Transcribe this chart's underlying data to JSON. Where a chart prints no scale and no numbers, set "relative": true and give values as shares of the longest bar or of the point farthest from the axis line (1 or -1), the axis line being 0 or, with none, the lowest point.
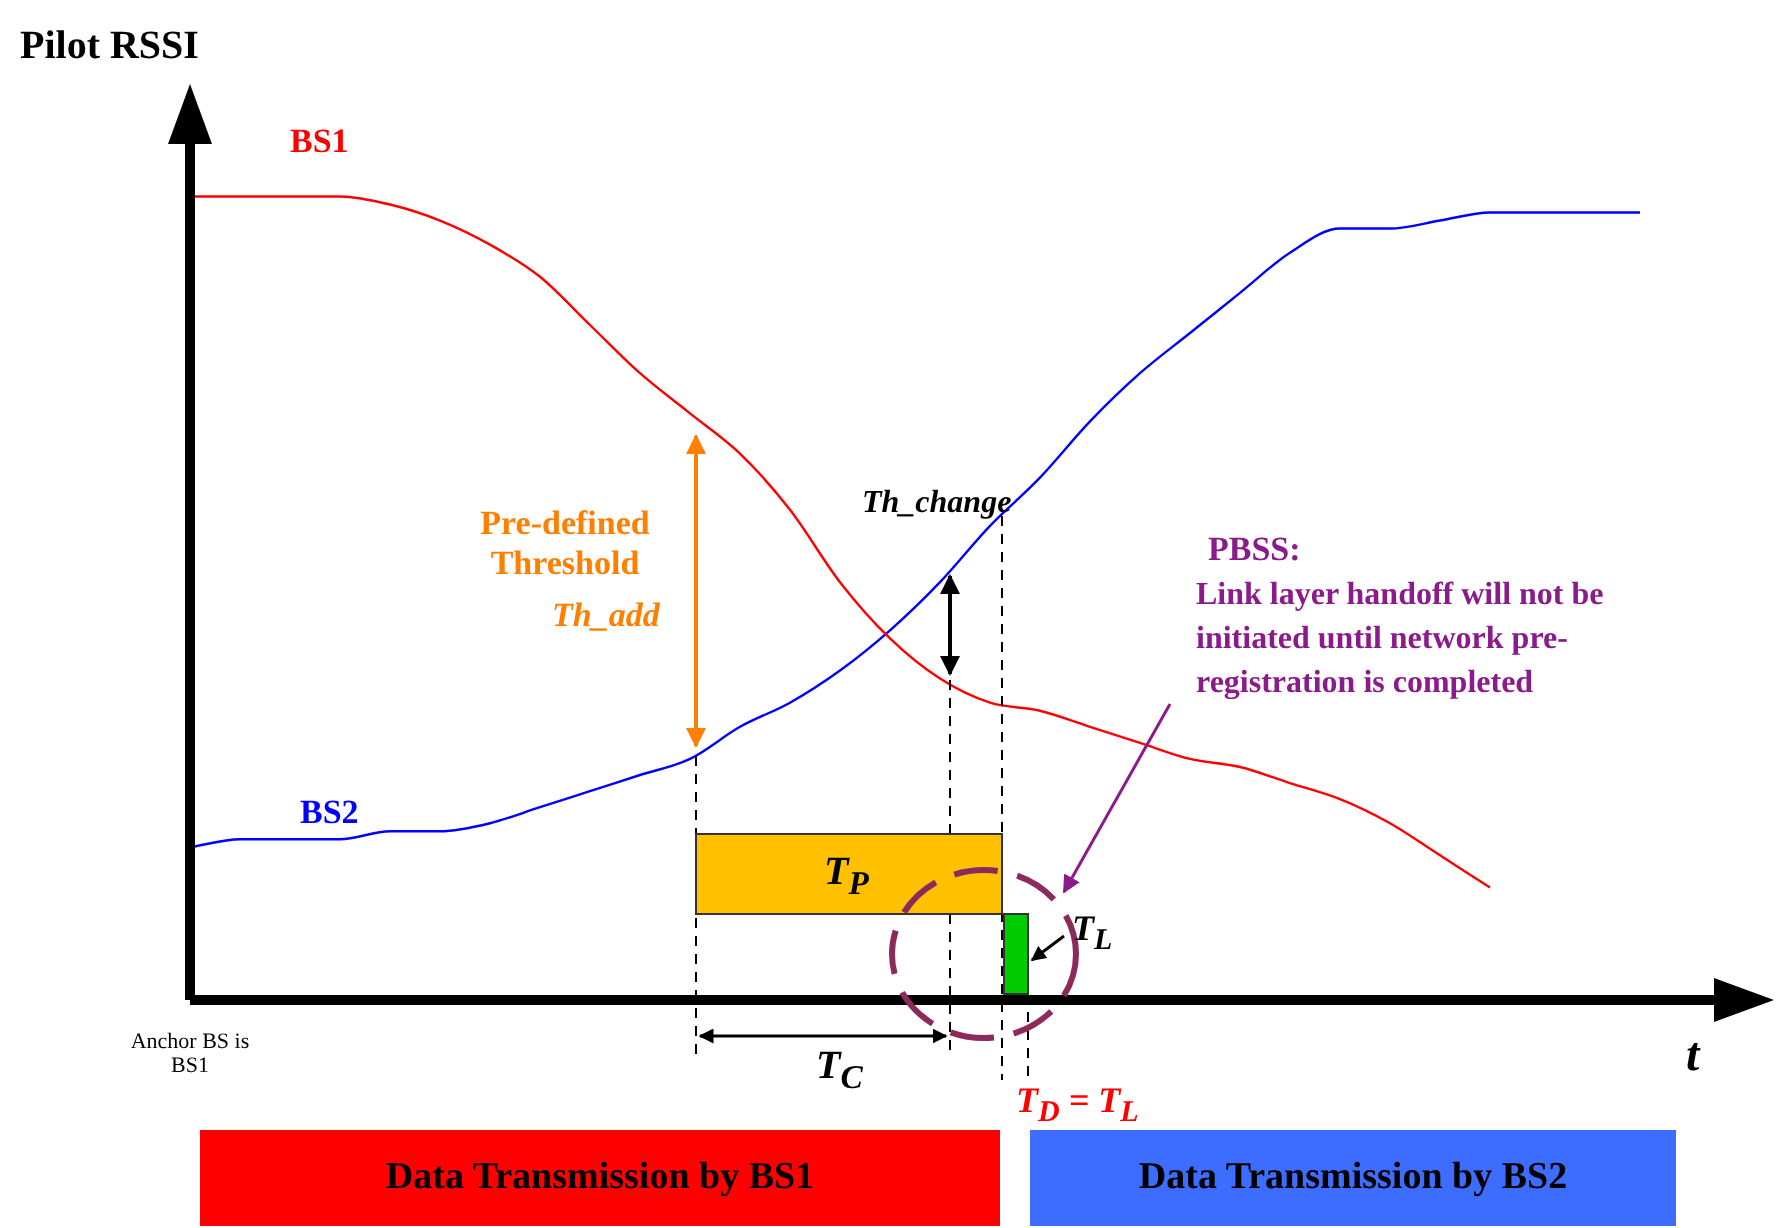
{
  "chart_data": {
    "type": "line",
    "relative": true,
    "ylabel": "Pilot RSSI",
    "xlabel": "t",
    "marker": "none",
    "categories": [
      null,
      null,
      null,
      null,
      null,
      null,
      null,
      null,
      null,
      null,
      null,
      null,
      null,
      null,
      null,
      null,
      null,
      null,
      null,
      null,
      null,
      null,
      null,
      null,
      null,
      null,
      null,
      null,
      null,
      null
    ],
    "series": [
      {
        "name": "BS1",
        "color": "#ff0000",
        "values": [
          1.0,
          1.0,
          1.0,
          1.0,
          0.99,
          0.97,
          0.94,
          0.9,
          0.84,
          0.78,
          0.73,
          0.68,
          0.61,
          0.52,
          0.45,
          0.4,
          0.37,
          0.36,
          0.34,
          0.32,
          0.3,
          0.29,
          0.27,
          0.25,
          0.22,
          0.18,
          0.14,
          null,
          null,
          null
        ]
      },
      {
        "name": "BS2",
        "color": "#0000ff",
        "values": [
          0.19,
          0.2,
          0.2,
          0.2,
          0.21,
          0.21,
          0.22,
          0.24,
          0.26,
          0.28,
          0.3,
          0.34,
          0.37,
          0.41,
          0.46,
          0.52,
          0.59,
          0.65,
          0.72,
          0.78,
          0.83,
          0.88,
          0.93,
          0.96,
          0.96,
          0.97,
          0.98,
          0.98,
          0.98,
          0.98
        ]
      }
    ],
    "annotations": [
      "Pre-defined Threshold",
      "Th_add",
      "Th_change",
      "PBSS:",
      "Link layer handoff will not be initiated until network pre-registration is completed",
      "T$_{P}$",
      "T$_{L}$",
      "T$_{C}$",
      "T$_{D}$ = T$_{L}$",
      "Anchor BS is BS1",
      "Data Transmission by BS1",
      "Data Transmission by BS2"
    ]
  }
}
